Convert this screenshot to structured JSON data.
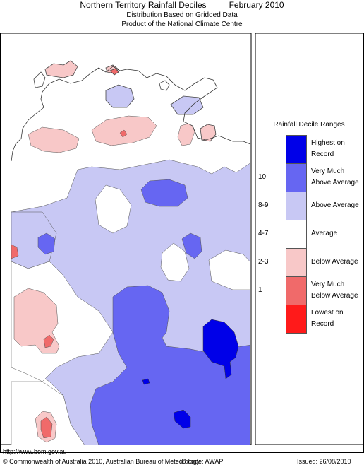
{
  "header": {
    "title": "Northern Territory Rainfall Deciles",
    "period": "February 2010",
    "subtitle": "Distribution Based on Gridded Data",
    "producer": "Product of the National Climate Centre"
  },
  "legend": {
    "title": "Rainfall Decile Ranges",
    "categories": [
      {
        "range": "",
        "label": [
          "Highest on",
          "Record"
        ],
        "color": "#0000e8"
      },
      {
        "range": "10",
        "label": [
          "Very Much",
          "Above Average"
        ],
        "color": "#6666f2"
      },
      {
        "range": "8-9",
        "label": [
          "Above Average"
        ],
        "color": "#c8c8f4"
      },
      {
        "range": "4-7",
        "label": [
          "Average"
        ],
        "color": "#ffffff"
      },
      {
        "range": "2-3",
        "label": [
          "Below Average"
        ],
        "color": "#f8c8c8"
      },
      {
        "range": "1",
        "label": [
          "Very Much",
          "Below Average"
        ],
        "color": "#f06a6a"
      },
      {
        "range": "",
        "label": [
          "Lowest on",
          "Record"
        ],
        "color": "#ff1a1a"
      }
    ]
  },
  "footer": {
    "url": "http://www.bom.gov.au",
    "copyright": "© Commonwealth of Australia 2010, Australian Bureau of Meteorology",
    "id_code": "ID code: AWAP",
    "issued": "Issued: 26/08/2010"
  }
}
